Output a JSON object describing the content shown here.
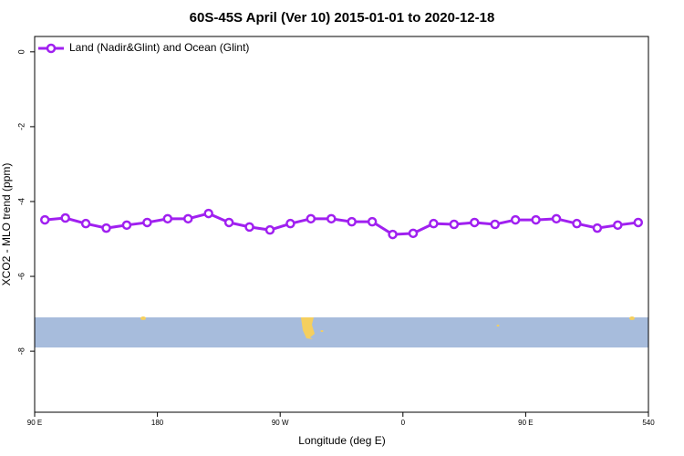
{
  "chart_data": {
    "type": "line",
    "title": "60S-45S April (Ver 10)   2015-01-01 to 2020-12-18",
    "xlabel": "Longitude (deg E)",
    "ylabel": "XCO2 - MLO trend (ppm)",
    "x": [
      97.5,
      112.5,
      127.5,
      142.5,
      157.5,
      172.5,
      187.5,
      202.5,
      217.5,
      232.5,
      247.5,
      262.5,
      277.5,
      292.5,
      307.5,
      322.5,
      337.5,
      352.5,
      367.5,
      382.5,
      397.5,
      412.5,
      427.5,
      442.5,
      457.5,
      472.5,
      487.5,
      502.5,
      517.5,
      532.5
    ],
    "series": [
      {
        "name": "Land (Nadir&Glint) and Ocean (Glint)",
        "color": "#a020f0",
        "values": [
          -4.49,
          -4.44,
          -4.59,
          -4.71,
          -4.63,
          -4.56,
          -4.46,
          -4.46,
          -4.32,
          -4.56,
          -4.68,
          -4.76,
          -4.59,
          -4.46,
          -4.46,
          -4.54,
          -4.54,
          -4.88,
          -4.85,
          -4.59,
          -4.61,
          -4.56,
          -4.61,
          -4.49,
          -4.49,
          -4.46,
          -4.59,
          -4.71,
          -4.63,
          -4.56
        ]
      }
    ],
    "xlim": [
      90,
      540
    ],
    "ylim": [
      -9.63,
      0.41
    ],
    "xticks": [
      {
        "value": 90,
        "label": "90 E"
      },
      180,
      {
        "value": 270,
        "label": "90 W"
      },
      {
        "value": 360,
        "label": "0"
      },
      {
        "value": 450,
        "label": "90 E"
      },
      540
    ],
    "yticks": [
      -8,
      -6,
      -4,
      -2,
      0
    ],
    "legend": "upper left"
  }
}
